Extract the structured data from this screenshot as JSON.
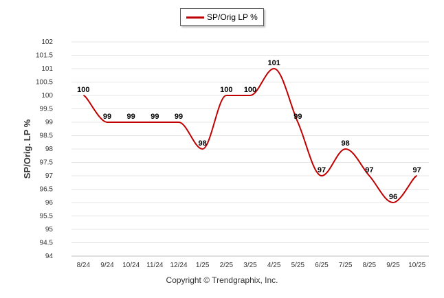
{
  "chart_data": {
    "type": "line",
    "ylabel": "SP/Orig. LP %",
    "xlabel": "",
    "categories": [
      "8/24",
      "9/24",
      "10/24",
      "11/24",
      "12/24",
      "1/25",
      "2/25",
      "3/25",
      "4/25",
      "5/25",
      "6/25",
      "7/25",
      "8/25",
      "9/25",
      "10/25"
    ],
    "series": [
      {
        "name": "SP/Orig LP %",
        "values": [
          100,
          99,
          99,
          99,
          99,
          98,
          100,
          100,
          101,
          99,
          97,
          98,
          97,
          96,
          97
        ],
        "labels": [
          "100",
          "99",
          "99",
          "99",
          "99",
          "98",
          "100",
          "100",
          "101",
          "99",
          "97",
          "98",
          "97",
          "96",
          "97"
        ],
        "color": "#c00000"
      }
    ],
    "ylim": [
      94,
      102
    ],
    "yticks": [
      "94",
      "94.5",
      "95",
      "95.5",
      "96",
      "96.5",
      "97",
      "97.5",
      "98",
      "98.5",
      "99",
      "99.5",
      "100",
      "100.5",
      "101",
      "101.5",
      "102"
    ],
    "grid": true,
    "legend_position": "top-center"
  },
  "footer": "Copyright © Trendgraphix, Inc."
}
